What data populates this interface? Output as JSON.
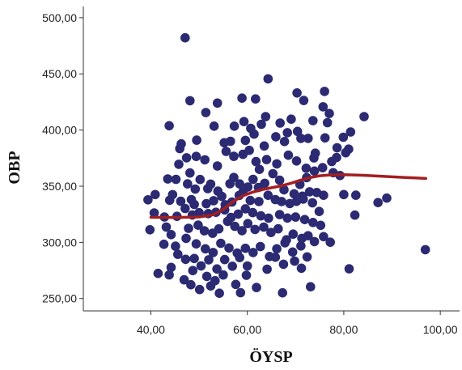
{
  "chart_data": {
    "type": "scatter",
    "xlabel": "ÖYSP",
    "ylabel": "OBP",
    "xlim": [
      26,
      104
    ],
    "ylim": [
      239,
      510
    ],
    "x_ticks": [
      {
        "value": 40,
        "label": "40,00"
      },
      {
        "value": 60,
        "label": "60,00"
      },
      {
        "value": 80,
        "label": "80,00"
      },
      {
        "value": 100,
        "label": "100,00"
      }
    ],
    "y_ticks": [
      {
        "value": 250,
        "label": "250,00"
      },
      {
        "value": 300,
        "label": "300,00"
      },
      {
        "value": 350,
        "label": "350,00"
      },
      {
        "value": 400,
        "label": "400,00"
      },
      {
        "value": 450,
        "label": "450,00"
      },
      {
        "value": 500,
        "label": "500,00"
      }
    ],
    "grid": false,
    "point_color": "#2b2a72",
    "fit_color": "#a31e22",
    "points": [
      [
        47.1,
        482.1
      ],
      [
        64.3,
        445.6
      ],
      [
        48.1,
        426.1
      ],
      [
        70.3,
        433.0
      ],
      [
        58.9,
        428.4
      ],
      [
        61.7,
        427.7
      ],
      [
        76.0,
        434.4
      ],
      [
        71.7,
        426.3
      ],
      [
        53.8,
        424.0
      ],
      [
        75.7,
        420.7
      ],
      [
        84.2,
        412.0
      ],
      [
        51.4,
        415.6
      ],
      [
        53.1,
        403.5
      ],
      [
        43.8,
        403.8
      ],
      [
        59.3,
        407.5
      ],
      [
        63.8,
        412.0
      ],
      [
        66.8,
        406.2
      ],
      [
        69.1,
        409.7
      ],
      [
        73.6,
        408.4
      ],
      [
        77.0,
        414.7
      ],
      [
        76.6,
        406.6
      ],
      [
        79.9,
        393.6
      ],
      [
        81.4,
        398.3
      ],
      [
        57.3,
        403.5
      ],
      [
        60.7,
        401.5
      ],
      [
        62.9,
        405.1
      ],
      [
        70.4,
        398.8
      ],
      [
        68.3,
        397.6
      ],
      [
        72.6,
        392.6
      ],
      [
        65.9,
        394.0
      ],
      [
        59.6,
        390.8
      ],
      [
        56.5,
        390.0
      ],
      [
        55.2,
        388.7
      ],
      [
        46.3,
        387.7
      ],
      [
        49.5,
        391.0
      ],
      [
        61.4,
        396.4
      ],
      [
        63.5,
        385.8
      ],
      [
        67.7,
        389.8
      ],
      [
        71.1,
        392.6
      ],
      [
        76.1,
        393.0
      ],
      [
        78.6,
        384.2
      ],
      [
        81.0,
        383.0
      ],
      [
        80.4,
        379.8
      ],
      [
        78.5,
        375.6
      ],
      [
        77.5,
        372.0
      ],
      [
        74.1,
        379.4
      ],
      [
        73.8,
        375.2
      ],
      [
        46.0,
        383.5
      ],
      [
        49.4,
        376.5
      ],
      [
        45.8,
        369.5
      ],
      [
        47.4,
        375.3
      ],
      [
        51.2,
        373.5
      ],
      [
        53.8,
        368.0
      ],
      [
        55.6,
        381.0
      ],
      [
        57.2,
        376.6
      ],
      [
        59.1,
        378.4
      ],
      [
        60.4,
        381.9
      ],
      [
        61.8,
        371.9
      ],
      [
        62.5,
        365.0
      ],
      [
        64.0,
        373.7
      ],
      [
        66.1,
        369.9
      ],
      [
        68.5,
        377.6
      ],
      [
        70.2,
        372.5
      ],
      [
        72.2,
        366.0
      ],
      [
        73.9,
        363.5
      ],
      [
        75.6,
        366.5
      ],
      [
        77.8,
        362.0
      ],
      [
        79.2,
        359.5
      ],
      [
        72.3,
        357.6
      ],
      [
        70.9,
        351.6
      ],
      [
        43.5,
        356.5
      ],
      [
        45.2,
        356.1
      ],
      [
        47.6,
        352.1
      ],
      [
        48.1,
        361.8
      ],
      [
        49.2,
        347.5
      ],
      [
        50.2,
        356.0
      ],
      [
        51.8,
        347.8
      ],
      [
        52.4,
        351.9
      ],
      [
        53.9,
        345.6
      ],
      [
        56.4,
        352.2
      ],
      [
        57.2,
        357.8
      ],
      [
        58.4,
        352.0
      ],
      [
        60.1,
        349.3
      ],
      [
        61.2,
        356.1
      ],
      [
        62.3,
        348.9
      ],
      [
        63.6,
        352.6
      ],
      [
        65.3,
        361.2
      ],
      [
        66.7,
        355.3
      ],
      [
        67.6,
        346.8
      ],
      [
        69.7,
        343.2
      ],
      [
        71.4,
        341.1
      ],
      [
        72.9,
        345.0
      ],
      [
        74.4,
        344.4
      ],
      [
        75.8,
        341.9
      ],
      [
        80.0,
        342.6
      ],
      [
        82.5,
        342.0
      ],
      [
        88.9,
        339.4
      ],
      [
        87.1,
        335.4
      ],
      [
        82.3,
        324.3
      ],
      [
        96.9,
        293.5
      ],
      [
        81.1,
        276.5
      ],
      [
        39.4,
        337.9
      ],
      [
        40.9,
        342.6
      ],
      [
        43.9,
        337.5
      ],
      [
        44.5,
        342.5
      ],
      [
        46.2,
        336.6
      ],
      [
        48.4,
        338.1
      ],
      [
        49.0,
        333.8
      ],
      [
        51.5,
        334.4
      ],
      [
        53.0,
        337.1
      ],
      [
        54.7,
        341.0
      ],
      [
        55.4,
        333.5
      ],
      [
        56.8,
        335.9
      ],
      [
        58.3,
        341.8
      ],
      [
        59.1,
        345.0
      ],
      [
        60.6,
        337.3
      ],
      [
        62.4,
        336.4
      ],
      [
        64.3,
        341.9
      ],
      [
        65.8,
        338.1
      ],
      [
        67.1,
        336.4
      ],
      [
        68.8,
        334.6
      ],
      [
        70.2,
        336.5
      ],
      [
        71.6,
        338.5
      ],
      [
        73.5,
        335.2
      ],
      [
        74.9,
        327.5
      ],
      [
        40.7,
        326.2
      ],
      [
        42.8,
        322.6
      ],
      [
        45.4,
        323.2
      ],
      [
        47.1,
        330.2
      ],
      [
        48.6,
        324.4
      ],
      [
        50.0,
        326.4
      ],
      [
        51.9,
        325.6
      ],
      [
        53.5,
        326.8
      ],
      [
        55.3,
        328.9
      ],
      [
        56.6,
        322.2
      ],
      [
        58.1,
        325.2
      ],
      [
        59.6,
        329.9
      ],
      [
        61.1,
        326.5
      ],
      [
        62.8,
        323.6
      ],
      [
        64.4,
        321.6
      ],
      [
        66.7,
        324.8
      ],
      [
        68.3,
        321.7
      ],
      [
        70.0,
        322.5
      ],
      [
        71.9,
        320.3
      ],
      [
        73.6,
        317.7
      ],
      [
        75.2,
        315.2
      ],
      [
        72.6,
        305.9
      ],
      [
        39.8,
        311.2
      ],
      [
        43.2,
        313.7
      ],
      [
        44.2,
        306.9
      ],
      [
        47.8,
        312.5
      ],
      [
        49.8,
        315.3
      ],
      [
        51.1,
        310.3
      ],
      [
        52.8,
        308.1
      ],
      [
        54.1,
        312.0
      ],
      [
        55.9,
        318.7
      ],
      [
        57.4,
        314.3
      ],
      [
        58.9,
        310.4
      ],
      [
        60.1,
        316.7
      ],
      [
        61.6,
        311.5
      ],
      [
        63.4,
        313.6
      ],
      [
        64.9,
        308.8
      ],
      [
        66.4,
        312.1
      ],
      [
        68.1,
        302.3
      ],
      [
        69.5,
        307.3
      ],
      [
        71.3,
        303.6
      ],
      [
        73.9,
        300.7
      ],
      [
        75.8,
        305.1
      ],
      [
        77.2,
        300.1
      ],
      [
        42.7,
        298.3
      ],
      [
        45.1,
        296.6
      ],
      [
        47.3,
        303.6
      ],
      [
        49.4,
        298.7
      ],
      [
        51.3,
        294.3
      ],
      [
        52.9,
        291.0
      ],
      [
        54.5,
        299.2
      ],
      [
        56.2,
        295.0
      ],
      [
        57.9,
        290.5
      ],
      [
        59.6,
        294.7
      ],
      [
        61.2,
        291.0
      ],
      [
        62.7,
        296.3
      ],
      [
        64.6,
        287.4
      ],
      [
        66.1,
        294.3
      ],
      [
        67.8,
        299.6
      ],
      [
        69.4,
        291.4
      ],
      [
        71.1,
        296.8
      ],
      [
        72.4,
        287.1
      ],
      [
        45.6,
        289.4
      ],
      [
        47.2,
        284.9
      ],
      [
        49.0,
        285.6
      ],
      [
        50.4,
        279.1
      ],
      [
        52.0,
        284.5
      ],
      [
        53.7,
        276.3
      ],
      [
        55.3,
        284.7
      ],
      [
        56.9,
        278.8
      ],
      [
        58.4,
        286.5
      ],
      [
        60.0,
        279.0
      ],
      [
        44.2,
        277.7
      ],
      [
        41.5,
        272.4
      ],
      [
        48.7,
        274.9
      ],
      [
        51.6,
        269.7
      ],
      [
        53.3,
        265.9
      ],
      [
        55.0,
        271.0
      ],
      [
        57.6,
        262.6
      ],
      [
        59.8,
        270.7
      ],
      [
        61.9,
        259.8
      ],
      [
        64.1,
        276.1
      ],
      [
        65.8,
        286.8
      ],
      [
        67.5,
        280.5
      ],
      [
        69.8,
        283.3
      ],
      [
        71.2,
        277.0
      ],
      [
        43.8,
        271.1
      ],
      [
        46.9,
        266.7
      ],
      [
        48.3,
        262.3
      ],
      [
        50.1,
        258.0
      ],
      [
        52.4,
        261.2
      ],
      [
        54.2,
        254.7
      ],
      [
        58.6,
        255.2
      ],
      [
        67.3,
        255.1
      ],
      [
        73.1,
        260.5
      ]
    ],
    "fit_line": [
      [
        40,
        322.3
      ],
      [
        45,
        322.2
      ],
      [
        50,
        322.6
      ],
      [
        53,
        324.6
      ],
      [
        55,
        329.4
      ],
      [
        57,
        336.2
      ],
      [
        59,
        341.3
      ],
      [
        61,
        344.6
      ],
      [
        63,
        346.9
      ],
      [
        65,
        348.6
      ],
      [
        67,
        350.3
      ],
      [
        69,
        352.6
      ],
      [
        71,
        355.3
      ],
      [
        73,
        357.7
      ],
      [
        75,
        359.3
      ],
      [
        77,
        360.0
      ],
      [
        80,
        360.2
      ],
      [
        84,
        359.7
      ],
      [
        88,
        358.8
      ],
      [
        92,
        357.9
      ],
      [
        97,
        356.9
      ]
    ]
  }
}
